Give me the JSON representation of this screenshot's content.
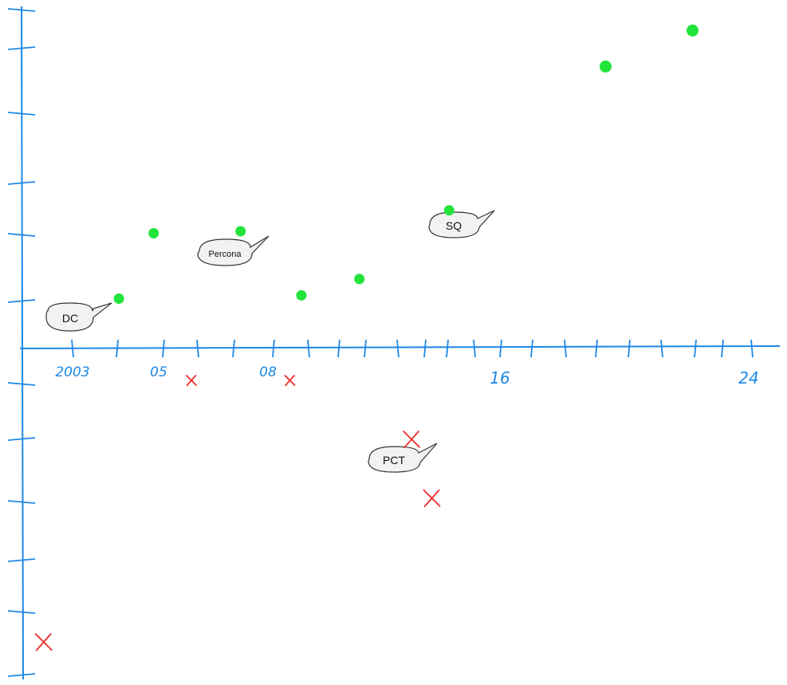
{
  "chart_data": {
    "type": "scatter",
    "title": "",
    "xlabel": "",
    "ylabel": "",
    "grid": false,
    "colors": {
      "axis": "#1e88e5",
      "positive": "#22e33a",
      "negative": "#ee2a2a",
      "bubble_fill": "#f2f2f2",
      "bubble_stroke": "#333333"
    },
    "x_tick_labels": [
      "2003",
      "05",
      "08",
      "16",
      "24"
    ],
    "positive_points": [
      {
        "x": 2004.6,
        "y": 0.75
      },
      {
        "x": 2005.8,
        "y": 1.75
      },
      {
        "x": 2008.8,
        "y": 1.78
      },
      {
        "x": 2010.9,
        "y": 0.8
      },
      {
        "x": 2012.9,
        "y": 1.05
      },
      {
        "x": 2016.0,
        "y": 2.1
      },
      {
        "x": 2021.4,
        "y": 4.3
      },
      {
        "x": 2024.4,
        "y": 4.85
      }
    ],
    "negative_points": [
      {
        "x": 2007.1,
        "y": -0.5,
        "size": "small"
      },
      {
        "x": 2010.5,
        "y": -0.5,
        "size": "small"
      },
      {
        "x": 2014.7,
        "y": -1.4,
        "size": "large"
      },
      {
        "x": 2015.4,
        "y": -2.3,
        "size": "large"
      },
      {
        "x": 2002.0,
        "y": -4.5,
        "size": "large"
      }
    ],
    "annotations": [
      {
        "text": "DC",
        "x": 2004.6,
        "y": 0.75
      },
      {
        "text": "Percona",
        "x": 2008.8,
        "y": 1.78
      },
      {
        "text": "SQ",
        "x": 2016.0,
        "y": 2.1
      },
      {
        "text": "PCT",
        "x": 2014.7,
        "y": -1.4
      }
    ]
  }
}
